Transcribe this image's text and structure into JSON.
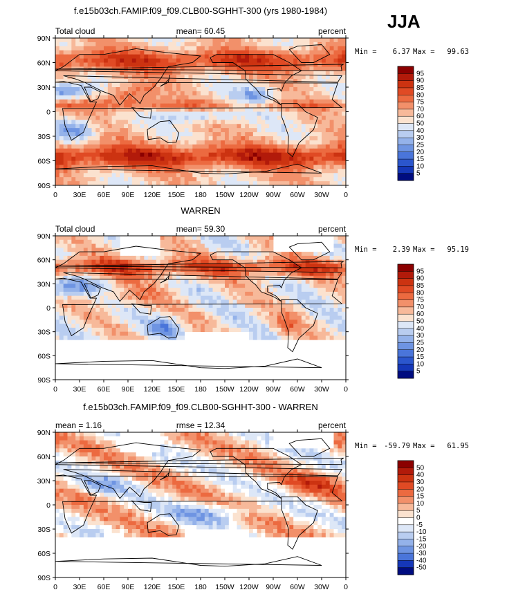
{
  "season": "JJA",
  "chart_data": [
    {
      "type": "heatmap",
      "id": "model",
      "title": "f.e15b03ch.FAMIP.f09_f09.CLB00-SGHHT-300 (yrs 1980-1984)",
      "left_label": "Total cloud",
      "center_label": "mean=  60.45",
      "right_label": "percent",
      "min_label": "Min =",
      "min_value": "6.37",
      "max_label": "Max =",
      "max_value": "99.63",
      "y_ticks": [
        "90N",
        "60N",
        "30N",
        "0",
        "30S",
        "60S",
        "90S"
      ],
      "x_ticks": [
        "0",
        "30E",
        "60E",
        "90E",
        "120E",
        "150E",
        "180",
        "150W",
        "120W",
        "90W",
        "60W",
        "30W",
        "0"
      ],
      "levels": [
        "95",
        "90",
        "85",
        "80",
        "75",
        "70",
        "60",
        "50",
        "40",
        "30",
        "25",
        "20",
        "15",
        "10",
        "5"
      ],
      "colors": [
        "#8b0000",
        "#b21a0a",
        "#cc3311",
        "#e04a24",
        "#ec6a40",
        "#f2906a",
        "#f7b99a",
        "#fbe2cf",
        "#dde7f7",
        "#b9cdf0",
        "#94b2ea",
        "#6e94e2",
        "#4a75da",
        "#2b56cd",
        "#1537b8",
        "#000c80"
      ],
      "value_range": [
        0,
        100
      ]
    },
    {
      "type": "heatmap",
      "id": "obs",
      "title": "WARREN",
      "left_label": "Total cloud",
      "center_label": "mean=  59.30",
      "right_label": "percent",
      "min_label": "Min =",
      "min_value": "2.39",
      "max_label": "Max =",
      "max_value": "95.19",
      "y_ticks": [
        "90N",
        "60N",
        "30N",
        "0",
        "30S",
        "60S",
        "90S"
      ],
      "x_ticks": [
        "0",
        "30E",
        "60E",
        "90E",
        "120E",
        "150E",
        "180",
        "150W",
        "120W",
        "90W",
        "60W",
        "30W",
        "0"
      ],
      "levels": [
        "95",
        "90",
        "85",
        "80",
        "75",
        "70",
        "60",
        "50",
        "40",
        "30",
        "25",
        "20",
        "15",
        "10",
        "5"
      ],
      "colors": [
        "#8b0000",
        "#b21a0a",
        "#cc3311",
        "#e04a24",
        "#ec6a40",
        "#f2906a",
        "#f7b99a",
        "#fbe2cf",
        "#dde7f7",
        "#b9cdf0",
        "#94b2ea",
        "#6e94e2",
        "#4a75da",
        "#2b56cd",
        "#1537b8",
        "#000c80"
      ],
      "value_range": [
        0,
        100
      ]
    },
    {
      "type": "heatmap",
      "id": "diff",
      "title": "f.e15b03ch.FAMIP.f09_f09.CLB00-SGHHT-300 - WARREN",
      "left_label": "mean =    1.16",
      "center_label": "rmse =   12.34",
      "right_label": "percent",
      "min_label": "Min =",
      "min_value": "-59.79",
      "max_label": "Max =",
      "max_value": "61.95",
      "y_ticks": [
        "90N",
        "60N",
        "30N",
        "0",
        "30S",
        "60S",
        "90S"
      ],
      "x_ticks": [
        "0",
        "30E",
        "60E",
        "90E",
        "120E",
        "150E",
        "180",
        "150W",
        "120W",
        "90W",
        "60W",
        "30W",
        "0"
      ],
      "levels": [
        "50",
        "40",
        "30",
        "20",
        "15",
        "10",
        "5",
        "0",
        "-5",
        "-10",
        "-15",
        "-20",
        "-30",
        "-40",
        "-50"
      ],
      "colors": [
        "#8b0000",
        "#b21a0a",
        "#cc3311",
        "#e04a24",
        "#ec6a40",
        "#f2906a",
        "#f7b99a",
        "#fbe2cf",
        "#ffffff",
        "#dde7f7",
        "#b9cdf0",
        "#94b2ea",
        "#6e94e2",
        "#4a75da",
        "#1537b8",
        "#000c80"
      ],
      "value_range": [
        -60,
        60
      ]
    }
  ]
}
